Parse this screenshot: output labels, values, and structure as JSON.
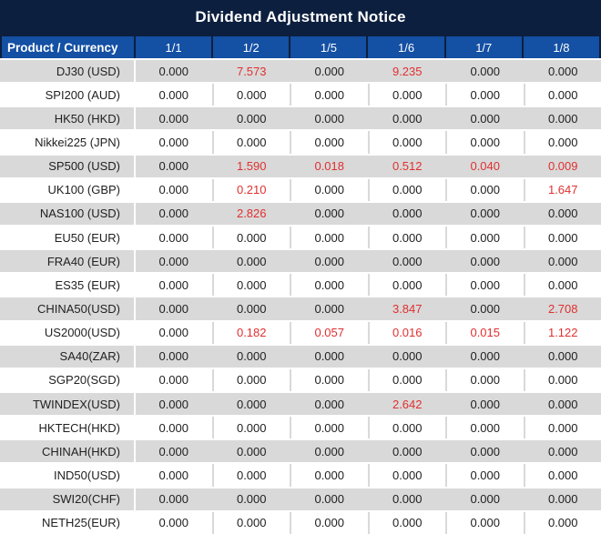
{
  "title": "Dividend Adjustment Notice",
  "colors": {
    "title_bg": "#0c1f3e",
    "header_bg": "#1450a3",
    "row_stripe": "#d9d9d9",
    "highlight_red": "#e03030"
  },
  "table": {
    "product_header": "Product / Currency",
    "date_headers": [
      "1/1",
      "1/2",
      "1/5",
      "1/6",
      "1/7",
      "1/8"
    ],
    "rows": [
      {
        "product": "DJ30 (USD)",
        "values": [
          "0.000",
          "7.573",
          "0.000",
          "9.235",
          "0.000",
          "0.000"
        ],
        "red": [
          false,
          true,
          false,
          true,
          false,
          false
        ]
      },
      {
        "product": "SPI200 (AUD)",
        "values": [
          "0.000",
          "0.000",
          "0.000",
          "0.000",
          "0.000",
          "0.000"
        ],
        "red": [
          false,
          false,
          false,
          false,
          false,
          false
        ]
      },
      {
        "product": "HK50 (HKD)",
        "values": [
          "0.000",
          "0.000",
          "0.000",
          "0.000",
          "0.000",
          "0.000"
        ],
        "red": [
          false,
          false,
          false,
          false,
          false,
          false
        ]
      },
      {
        "product": "Nikkei225 (JPN)",
        "values": [
          "0.000",
          "0.000",
          "0.000",
          "0.000",
          "0.000",
          "0.000"
        ],
        "red": [
          false,
          false,
          false,
          false,
          false,
          false
        ]
      },
      {
        "product": "SP500 (USD)",
        "values": [
          "0.000",
          "1.590",
          "0.018",
          "0.512",
          "0.040",
          "0.009"
        ],
        "red": [
          false,
          true,
          true,
          true,
          true,
          true
        ]
      },
      {
        "product": "UK100 (GBP)",
        "values": [
          "0.000",
          "0.210",
          "0.000",
          "0.000",
          "0.000",
          "1.647"
        ],
        "red": [
          false,
          true,
          false,
          false,
          false,
          true
        ]
      },
      {
        "product": "NAS100 (USD)",
        "values": [
          "0.000",
          "2.826",
          "0.000",
          "0.000",
          "0.000",
          "0.000"
        ],
        "red": [
          false,
          true,
          false,
          false,
          false,
          false
        ]
      },
      {
        "product": "EU50 (EUR)",
        "values": [
          "0.000",
          "0.000",
          "0.000",
          "0.000",
          "0.000",
          "0.000"
        ],
        "red": [
          false,
          false,
          false,
          false,
          false,
          false
        ]
      },
      {
        "product": "FRA40 (EUR)",
        "values": [
          "0.000",
          "0.000",
          "0.000",
          "0.000",
          "0.000",
          "0.000"
        ],
        "red": [
          false,
          false,
          false,
          false,
          false,
          false
        ]
      },
      {
        "product": "ES35 (EUR)",
        "values": [
          "0.000",
          "0.000",
          "0.000",
          "0.000",
          "0.000",
          "0.000"
        ],
        "red": [
          false,
          false,
          false,
          false,
          false,
          false
        ]
      },
      {
        "product": "CHINA50(USD)",
        "values": [
          "0.000",
          "0.000",
          "0.000",
          "3.847",
          "0.000",
          "2.708"
        ],
        "red": [
          false,
          false,
          false,
          true,
          false,
          true
        ]
      },
      {
        "product": "US2000(USD)",
        "values": [
          "0.000",
          "0.182",
          "0.057",
          "0.016",
          "0.015",
          "1.122"
        ],
        "red": [
          false,
          true,
          true,
          true,
          true,
          true
        ]
      },
      {
        "product": "SA40(ZAR)",
        "values": [
          "0.000",
          "0.000",
          "0.000",
          "0.000",
          "0.000",
          "0.000"
        ],
        "red": [
          false,
          false,
          false,
          false,
          false,
          false
        ]
      },
      {
        "product": "SGP20(SGD)",
        "values": [
          "0.000",
          "0.000",
          "0.000",
          "0.000",
          "0.000",
          "0.000"
        ],
        "red": [
          false,
          false,
          false,
          false,
          false,
          false
        ]
      },
      {
        "product": "TWINDEX(USD)",
        "values": [
          "0.000",
          "0.000",
          "0.000",
          "2.642",
          "0.000",
          "0.000"
        ],
        "red": [
          false,
          false,
          false,
          true,
          false,
          false
        ]
      },
      {
        "product": "HKTECH(HKD)",
        "values": [
          "0.000",
          "0.000",
          "0.000",
          "0.000",
          "0.000",
          "0.000"
        ],
        "red": [
          false,
          false,
          false,
          false,
          false,
          false
        ]
      },
      {
        "product": "CHINAH(HKD)",
        "values": [
          "0.000",
          "0.000",
          "0.000",
          "0.000",
          "0.000",
          "0.000"
        ],
        "red": [
          false,
          false,
          false,
          false,
          false,
          false
        ]
      },
      {
        "product": "IND50(USD)",
        "values": [
          "0.000",
          "0.000",
          "0.000",
          "0.000",
          "0.000",
          "0.000"
        ],
        "red": [
          false,
          false,
          false,
          false,
          false,
          false
        ]
      },
      {
        "product": "SWI20(CHF)",
        "values": [
          "0.000",
          "0.000",
          "0.000",
          "0.000",
          "0.000",
          "0.000"
        ],
        "red": [
          false,
          false,
          false,
          false,
          false,
          false
        ]
      },
      {
        "product": "NETH25(EUR)",
        "values": [
          "0.000",
          "0.000",
          "0.000",
          "0.000",
          "0.000",
          "0.000"
        ],
        "red": [
          false,
          false,
          false,
          false,
          false,
          false
        ]
      }
    ]
  }
}
